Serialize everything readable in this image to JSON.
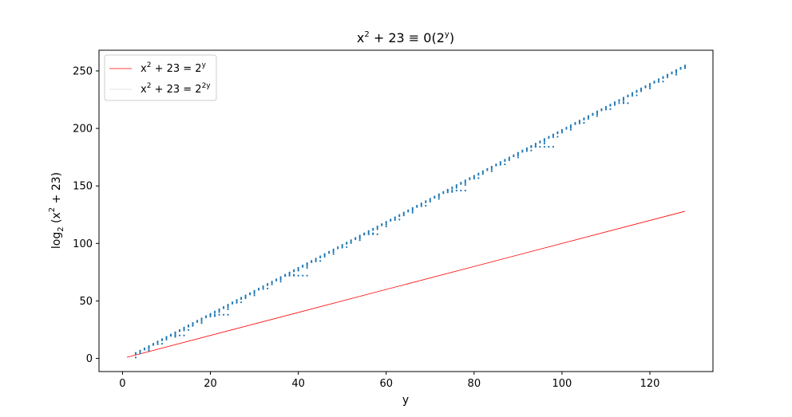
{
  "chart_data": {
    "type": "scatter",
    "title": {
      "base": "x",
      "sup1": "2",
      "mid": " + 23 ≡ 0(2",
      "sup2": "y",
      "end": ")"
    },
    "xlabel": "y",
    "ylabel": {
      "pre": "log",
      "sub": "2",
      "mid": " (x",
      "sup": "2",
      "post": " + 23)"
    },
    "xlim": [
      -5.35,
      134.35
    ],
    "ylim": [
      -11.4,
      268.0
    ],
    "xticks": [
      0,
      20,
      40,
      60,
      80,
      100,
      120
    ],
    "yticks": [
      0,
      50,
      100,
      150,
      200,
      250
    ],
    "grid": false,
    "legend_position": "upper-left",
    "series": [
      {
        "label": {
          "base": "x",
          "sup1": "2",
          "mid": " + 23 = 2",
          "sup2": "y"
        },
        "type": "line",
        "color": "#ff0000",
        "x": [
          1,
          128
        ],
        "y": [
          1,
          128
        ]
      },
      {
        "label": {
          "base": "x",
          "sup1": "2",
          "mid": " + 23 = 2",
          "sup2": "2y"
        },
        "type": "line",
        "color": "#d8d8d8",
        "x": [],
        "y": []
      },
      {
        "type": "scatter",
        "color": "#1f77b4",
        "description_rule": "for each y in 3..128, log2(x^2+23) values of solutions x mod 2^y: a main band near 2y-2 with plateau rows at y-values 11,20,37,55,74,93,112 dropping to lower levels",
        "y_start": 3,
        "y_end": 128
      }
    ]
  }
}
